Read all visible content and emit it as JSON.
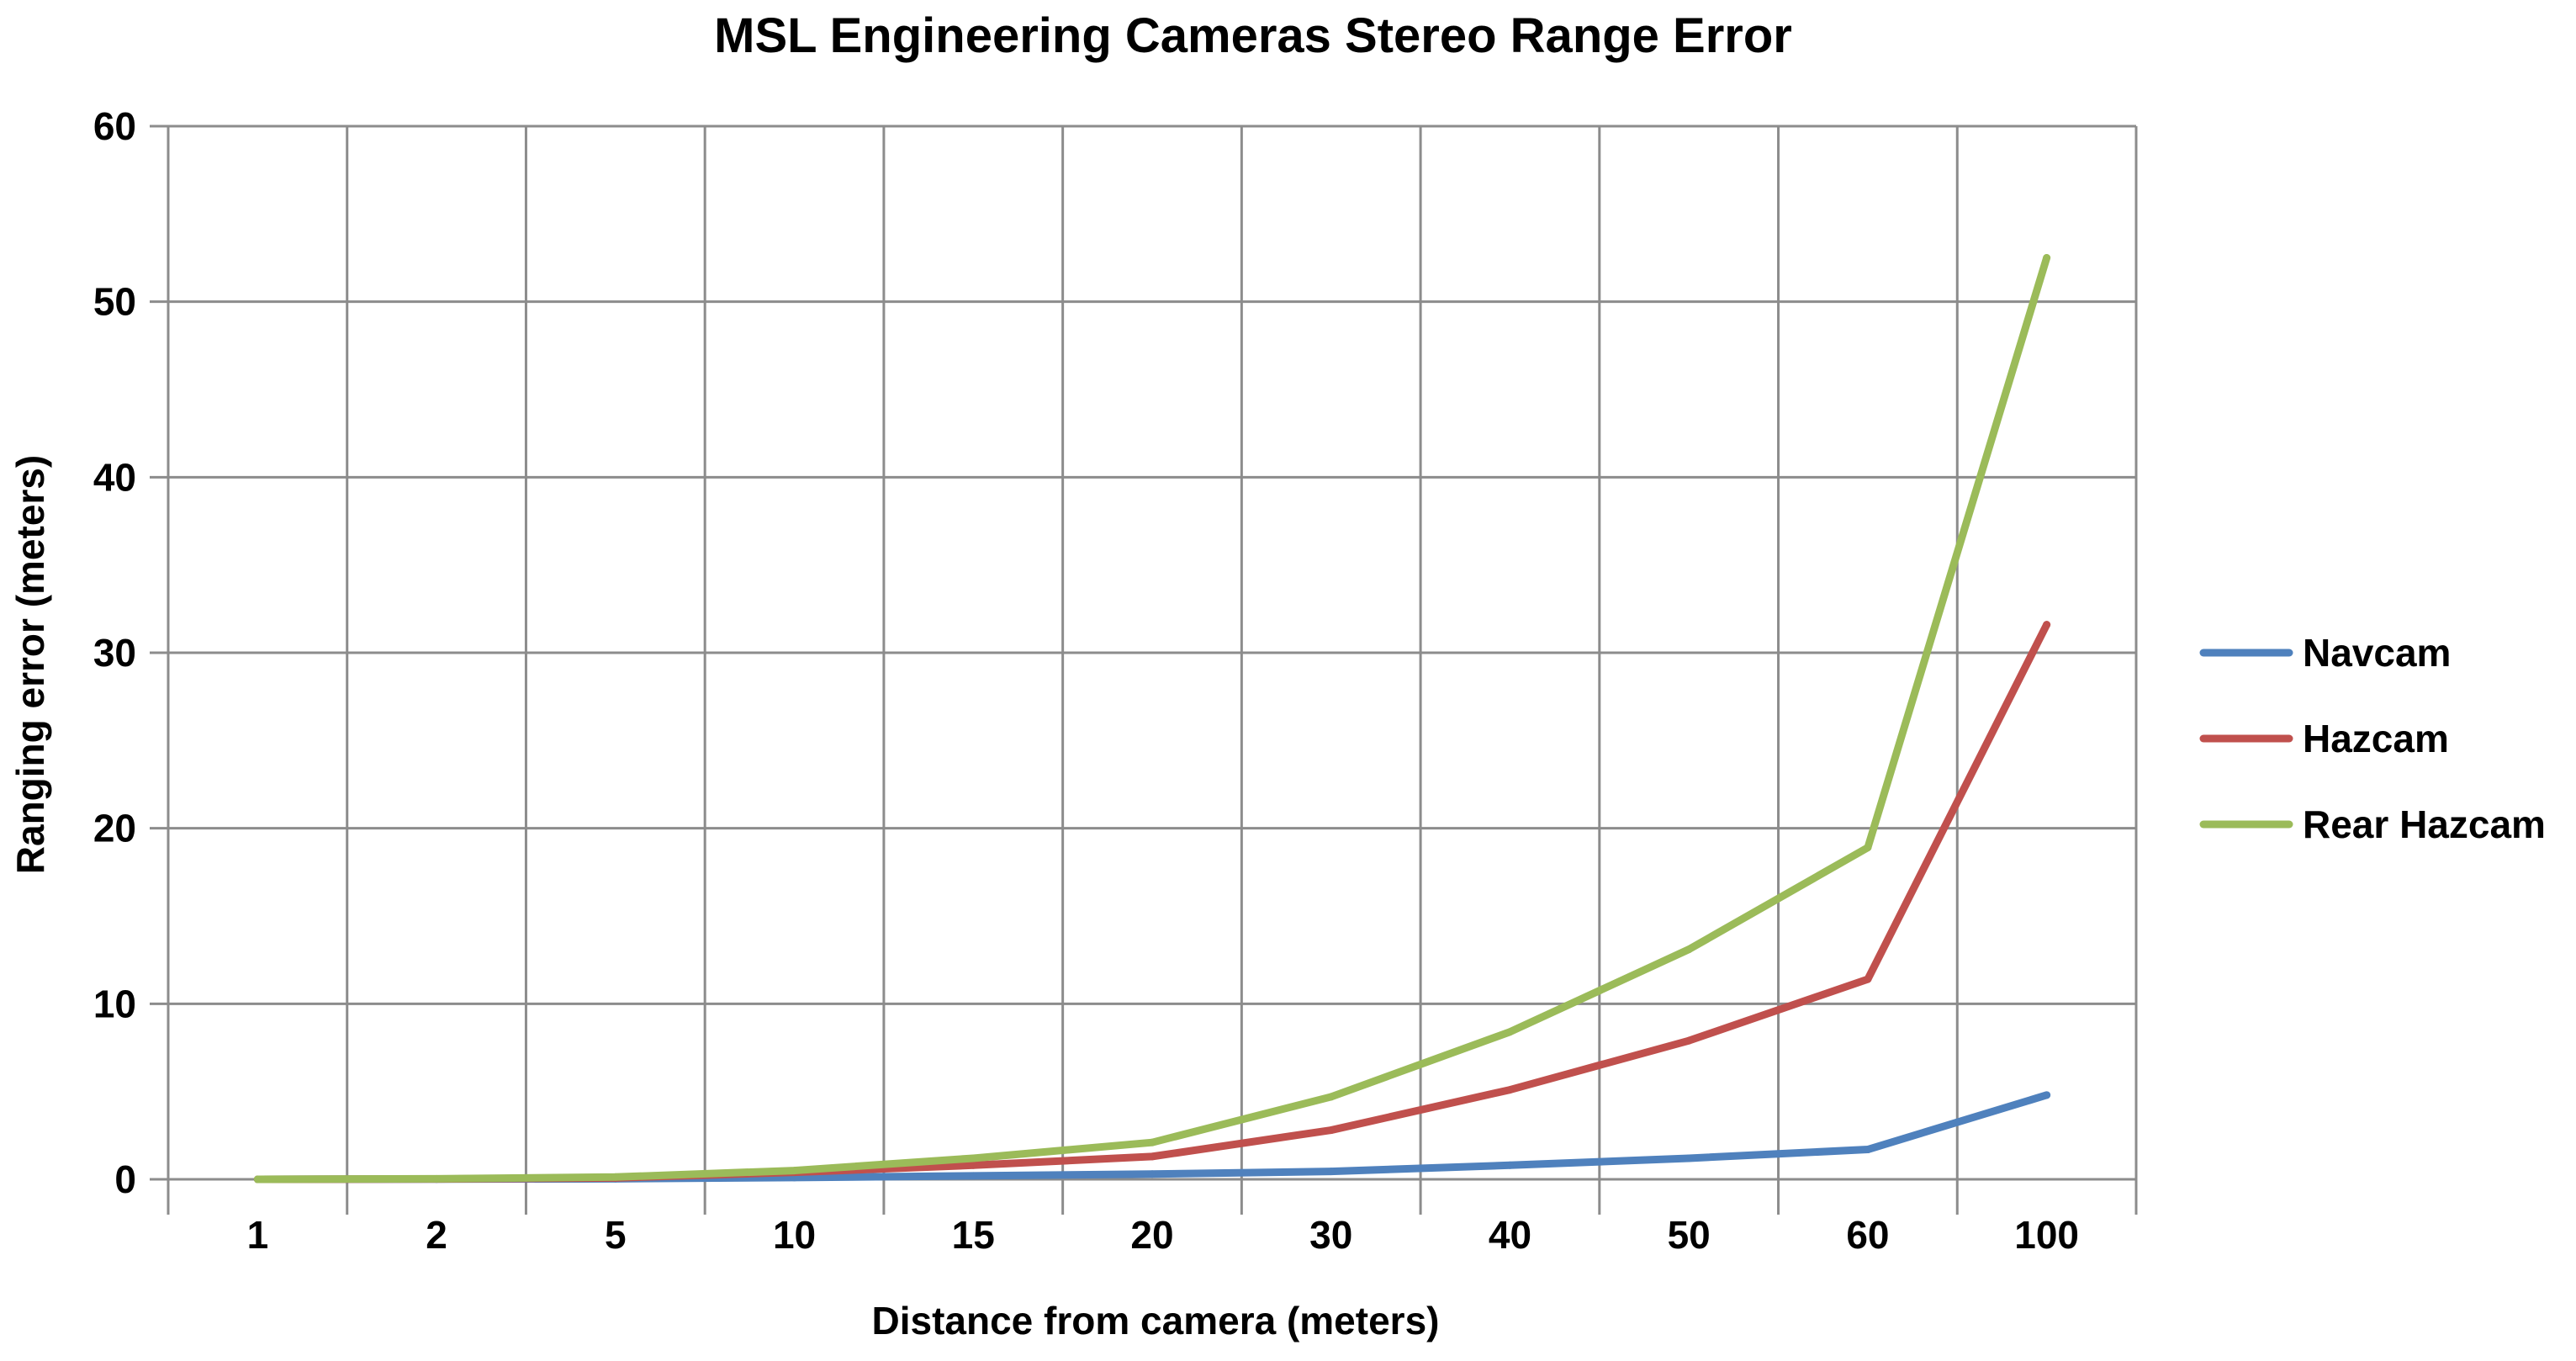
{
  "chart_data": {
    "type": "line",
    "title": "MSL Engineering Cameras Stereo Range Error",
    "xlabel": "Distance from camera (meters)",
    "ylabel": "Ranging error (meters)",
    "categories": [
      "1",
      "2",
      "5",
      "10",
      "15",
      "20",
      "30",
      "40",
      "50",
      "60",
      "100"
    ],
    "ylim": [
      0,
      60
    ],
    "yticks": [
      "0",
      "10",
      "20",
      "30",
      "40",
      "50",
      "60"
    ],
    "grid": true,
    "legend_position": "right",
    "series": [
      {
        "name": "Navcam",
        "color": "#4f81bd",
        "values": [
          0.0,
          0.01,
          0.03,
          0.1,
          0.2,
          0.3,
          0.45,
          0.8,
          1.2,
          1.7,
          4.8
        ]
      },
      {
        "name": "Hazcam",
        "color": "#c0504d",
        "values": [
          0.0,
          0.02,
          0.08,
          0.4,
          0.8,
          1.3,
          2.8,
          5.1,
          7.9,
          11.4,
          31.6
        ]
      },
      {
        "name": "Rear Hazcam",
        "color": "#9bbb59",
        "values": [
          0.0,
          0.03,
          0.13,
          0.5,
          1.2,
          2.1,
          4.7,
          8.4,
          13.1,
          18.9,
          52.5
        ]
      }
    ]
  }
}
